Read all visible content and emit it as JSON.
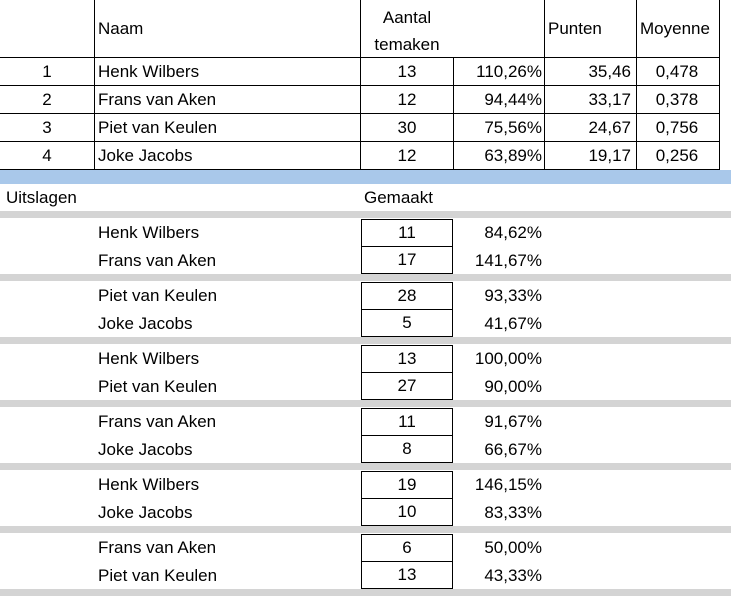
{
  "standings": {
    "headers": {
      "naam": "Naam",
      "aantal_line1": "Aantal",
      "aantal_line2": "temaken",
      "punten": "Punten",
      "moyenne": "Moyenne"
    },
    "rows": [
      {
        "rank": "1",
        "name": "Henk Wilbers",
        "aantal": "13",
        "percent": "110,26%",
        "punten": "35,46",
        "moyenne": "0,478"
      },
      {
        "rank": "2",
        "name": "Frans van Aken",
        "aantal": "12",
        "percent": "94,44%",
        "punten": "33,17",
        "moyenne": "0,378"
      },
      {
        "rank": "3",
        "name": "Piet van Keulen",
        "aantal": "30",
        "percent": "75,56%",
        "punten": "24,67",
        "moyenne": "0,756"
      },
      {
        "rank": "4",
        "name": "Joke Jacobs",
        "aantal": "12",
        "percent": "63,89%",
        "punten": "19,17",
        "moyenne": "0,256"
      }
    ]
  },
  "results": {
    "title": "Uitslagen",
    "made_label": "Gemaakt",
    "matches": [
      {
        "players": [
          {
            "name": "Henk Wilbers",
            "made": "11",
            "percent": "84,62%"
          },
          {
            "name": "Frans van Aken",
            "made": "17",
            "percent": "141,67%"
          }
        ]
      },
      {
        "players": [
          {
            "name": "Piet van Keulen",
            "made": "28",
            "percent": "93,33%"
          },
          {
            "name": "Joke Jacobs",
            "made": "5",
            "percent": "41,67%"
          }
        ]
      },
      {
        "players": [
          {
            "name": "Henk Wilbers",
            "made": "13",
            "percent": "100,00%"
          },
          {
            "name": "Piet van Keulen",
            "made": "27",
            "percent": "90,00%"
          }
        ]
      },
      {
        "players": [
          {
            "name": "Frans van Aken",
            "made": "11",
            "percent": "91,67%"
          },
          {
            "name": "Joke Jacobs",
            "made": "8",
            "percent": "66,67%"
          }
        ]
      },
      {
        "players": [
          {
            "name": "Henk Wilbers",
            "made": "19",
            "percent": "146,15%"
          },
          {
            "name": "Joke Jacobs",
            "made": "10",
            "percent": "83,33%"
          }
        ]
      },
      {
        "players": [
          {
            "name": "Frans van Aken",
            "made": "6",
            "percent": "50,00%"
          },
          {
            "name": "Piet van Keulen",
            "made": "13",
            "percent": "43,33%"
          }
        ]
      }
    ]
  },
  "colors": {
    "separator_band": "#a9c8ea",
    "match_divider": "#d4d4d4"
  }
}
